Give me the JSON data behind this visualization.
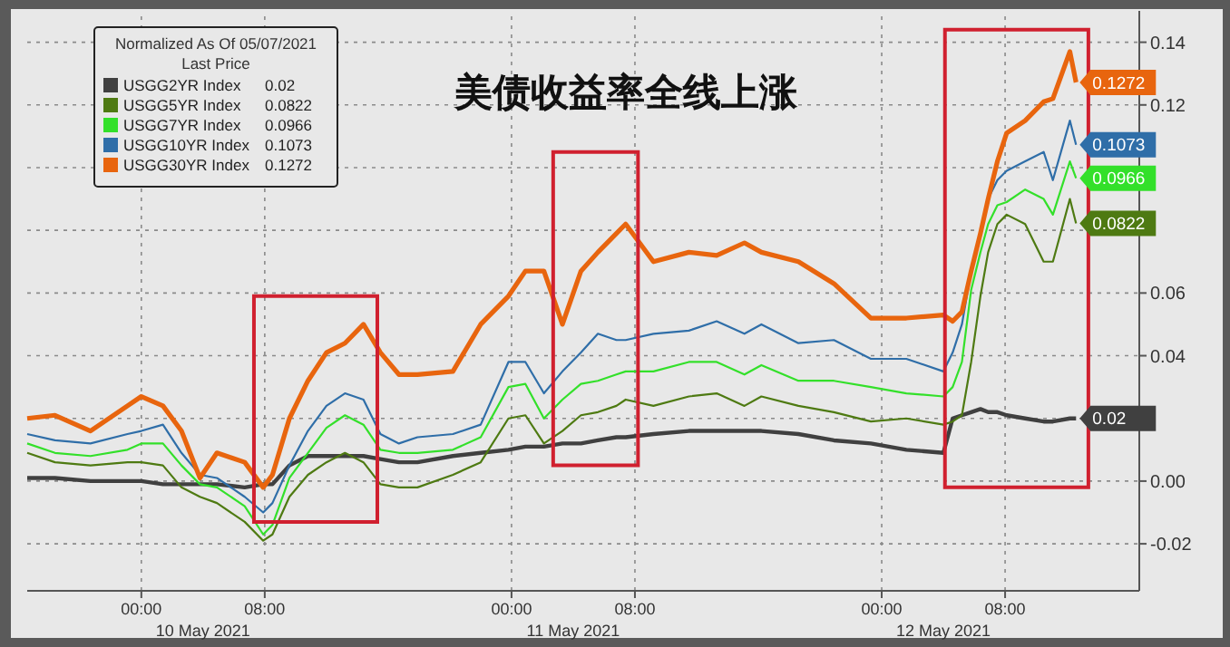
{
  "chart_data": {
    "type": "line",
    "title": "美债收益率全线上涨",
    "legend_title": "Normalized As Of 05/07/2021\nLast Price",
    "x": [
      "2021-05-09T16:36",
      "2021-05-09T18:24",
      "2021-05-09T20:42",
      "2021-05-09T23:06",
      "2021-05-10T00:00",
      "2021-05-10T01:24",
      "2021-05-10T02:36",
      "2021-05-10T03:48",
      "2021-05-10T04:54",
      "2021-05-10T06:42",
      "2021-05-10T07:54",
      "2021-05-10T08:30",
      "2021-05-10T09:36",
      "2021-05-10T10:48",
      "2021-05-10T12:00",
      "2021-05-10T13:12",
      "2021-05-10T14:24",
      "2021-05-10T15:30",
      "2021-05-10T16:42",
      "2021-05-10T17:54",
      "2021-05-10T20:12",
      "2021-05-10T22:00",
      "2021-05-10T23:48",
      "2021-05-11T00:54",
      "2021-05-11T02:06",
      "2021-05-11T03:18",
      "2021-05-11T04:30",
      "2021-05-11T05:36",
      "2021-05-11T06:48",
      "2021-05-11T07:24",
      "2021-05-11T09:12",
      "2021-05-11T11:30",
      "2021-05-11T13:18",
      "2021-05-11T15:06",
      "2021-05-11T16:12",
      "2021-05-11T18:36",
      "2021-05-11T20:54",
      "2021-05-11T23:18",
      "2021-05-12T01:36",
      "2021-05-12T04:00",
      "2021-05-12T04:36",
      "2021-05-12T05:12",
      "2021-05-12T05:48",
      "2021-05-12T06:24",
      "2021-05-12T06:54",
      "2021-05-12T07:30",
      "2021-05-12T08:06",
      "2021-05-12T09:18",
      "2021-05-12T10:30",
      "2021-05-12T11:06",
      "2021-05-12T12:12",
      "2021-05-12T12:36"
    ],
    "series": [
      {
        "name": "USGG2YR Index 0.02",
        "color": "#404040",
        "values": [
          0.001,
          0.001,
          0,
          0,
          0,
          -0.001,
          -0.001,
          -0.001,
          -0.001,
          -0.002,
          -0.001,
          -0.001,
          0.005,
          0.008,
          0.008,
          0.008,
          0.008,
          0.007,
          0.006,
          0.006,
          0.008,
          0.009,
          0.01,
          0.011,
          0.011,
          0.012,
          0.012,
          0.013,
          0.014,
          0.014,
          0.015,
          0.016,
          0.016,
          0.016,
          0.016,
          0.015,
          0.013,
          0.012,
          0.01,
          0.009,
          0.02,
          0.021,
          0.022,
          0.023,
          0.022,
          0.022,
          0.021,
          0.02,
          0.019,
          0.019,
          0.02,
          0.02
        ],
        "value_labels": [
          null,
          null,
          null,
          null,
          null,
          null,
          null,
          null,
          null,
          null,
          null,
          null,
          null,
          null,
          null,
          null,
          null,
          null,
          null,
          null,
          null,
          null,
          null,
          null,
          null,
          null,
          null,
          null,
          null,
          null,
          null,
          null,
          null,
          null,
          null,
          null,
          null,
          null,
          null,
          null,
          null,
          null,
          null,
          null,
          null,
          null,
          null,
          null,
          null,
          null,
          null,
          "0.02"
        ]
      },
      {
        "name": "USGG5YR Index 0.0822",
        "color": "#4e7a12",
        "values": [
          0.009,
          0.006,
          0.005,
          0.006,
          0.006,
          0.005,
          -0.002,
          -0.005,
          -0.007,
          -0.013,
          -0.019,
          -0.017,
          -0.005,
          0.002,
          0.006,
          0.009,
          0.006,
          -0.001,
          -0.002,
          -0.002,
          0.002,
          0.006,
          0.02,
          0.021,
          0.012,
          0.016,
          0.021,
          0.022,
          0.024,
          0.026,
          0.024,
          0.027,
          0.028,
          0.024,
          0.027,
          0.024,
          0.022,
          0.019,
          0.02,
          0.018,
          0.019,
          0.021,
          0.038,
          0.059,
          0.073,
          0.082,
          0.085,
          0.082,
          0.07,
          0.07,
          0.09,
          0.0822
        ],
        "value_labels": [
          null,
          null,
          null,
          null,
          null,
          null,
          null,
          null,
          null,
          null,
          null,
          null,
          null,
          null,
          null,
          null,
          null,
          null,
          null,
          null,
          null,
          null,
          null,
          null,
          null,
          null,
          null,
          null,
          null,
          null,
          null,
          null,
          null,
          null,
          null,
          null,
          null,
          null,
          null,
          null,
          null,
          null,
          null,
          null,
          null,
          null,
          null,
          null,
          null,
          null,
          null,
          "0.0822"
        ]
      },
      {
        "name": "USGG7YR Index 0.0966",
        "color": "#33e02a",
        "values": [
          0.012,
          0.009,
          0.008,
          0.01,
          0.012,
          0.012,
          0.005,
          -0.001,
          -0.002,
          -0.008,
          -0.017,
          -0.014,
          0.001,
          0.009,
          0.017,
          0.021,
          0.018,
          0.01,
          0.009,
          0.009,
          0.01,
          0.014,
          0.03,
          0.031,
          0.02,
          0.026,
          0.031,
          0.032,
          0.034,
          0.035,
          0.035,
          0.038,
          0.038,
          0.034,
          0.037,
          0.032,
          0.032,
          0.03,
          0.028,
          0.027,
          0.03,
          0.038,
          0.061,
          0.073,
          0.082,
          0.088,
          0.089,
          0.093,
          0.09,
          0.085,
          0.102,
          0.0966
        ],
        "value_labels": [
          null,
          null,
          null,
          null,
          null,
          null,
          null,
          null,
          null,
          null,
          null,
          null,
          null,
          null,
          null,
          null,
          null,
          null,
          null,
          null,
          null,
          null,
          null,
          null,
          null,
          null,
          null,
          null,
          null,
          null,
          null,
          null,
          null,
          null,
          null,
          null,
          null,
          null,
          null,
          null,
          null,
          null,
          null,
          null,
          null,
          null,
          null,
          null,
          null,
          null,
          null,
          "0.0966"
        ]
      },
      {
        "name": "USGG10YR Index 0.1073",
        "color": "#2f6ea8",
        "values": [
          0.015,
          0.013,
          0.012,
          0.015,
          0.016,
          0.018,
          0.009,
          0.002,
          0.001,
          -0.005,
          -0.01,
          -0.007,
          0.005,
          0.016,
          0.024,
          0.028,
          0.026,
          0.015,
          0.012,
          0.014,
          0.015,
          0.018,
          0.038,
          0.038,
          0.028,
          0.035,
          0.041,
          0.047,
          0.045,
          0.045,
          0.047,
          0.048,
          0.051,
          0.047,
          0.05,
          0.044,
          0.045,
          0.039,
          0.039,
          0.035,
          0.041,
          0.05,
          0.067,
          0.079,
          0.09,
          0.096,
          0.099,
          0.102,
          0.105,
          0.096,
          0.115,
          0.1073
        ],
        "value_labels": [
          null,
          null,
          null,
          null,
          null,
          null,
          null,
          null,
          null,
          null,
          null,
          null,
          null,
          null,
          null,
          null,
          null,
          null,
          null,
          null,
          null,
          null,
          null,
          null,
          null,
          null,
          null,
          null,
          null,
          null,
          null,
          null,
          null,
          null,
          null,
          null,
          null,
          null,
          null,
          null,
          null,
          null,
          null,
          null,
          null,
          null,
          null,
          null,
          null,
          null,
          null,
          "0.1073"
        ]
      },
      {
        "name": "USGG30YR Index 0.1272",
        "color": "#e8650e",
        "values": [
          0.02,
          0.021,
          0.016,
          0.024,
          0.027,
          0.024,
          0.016,
          0.001,
          0.009,
          0.006,
          -0.002,
          0.002,
          0.02,
          0.032,
          0.041,
          0.044,
          0.05,
          0.041,
          0.034,
          0.034,
          0.035,
          0.05,
          0.059,
          0.067,
          0.067,
          0.05,
          0.067,
          0.073,
          0.079,
          0.082,
          0.07,
          0.073,
          0.072,
          0.076,
          0.073,
          0.07,
          0.063,
          0.052,
          0.052,
          0.053,
          0.051,
          0.054,
          0.067,
          0.079,
          0.09,
          0.102,
          0.111,
          0.115,
          0.121,
          0.122,
          0.137,
          0.1272
        ],
        "value_labels": [
          null,
          null,
          null,
          null,
          null,
          null,
          null,
          null,
          null,
          null,
          null,
          null,
          null,
          null,
          null,
          null,
          null,
          null,
          null,
          null,
          null,
          null,
          null,
          null,
          null,
          null,
          null,
          null,
          null,
          null,
          null,
          null,
          null,
          null,
          null,
          null,
          null,
          null,
          null,
          null,
          null,
          null,
          null,
          null,
          null,
          null,
          null,
          null,
          null,
          null,
          null,
          "0.1272"
        ]
      }
    ],
    "xlim": [
      "2021-05-09T16:36",
      "2021-05-12T16:42"
    ],
    "xticks": [
      {
        "value": "2021-05-10T00:00",
        "label": "00:00"
      },
      {
        "value": "2021-05-10T08:00",
        "label": "08:00"
      },
      {
        "value": "2021-05-11T00:00",
        "label": "00:00"
      },
      {
        "value": "2021-05-11T08:00",
        "label": "08:00"
      },
      {
        "value": "2021-05-12T00:00",
        "label": "00:00"
      },
      {
        "value": "2021-05-12T08:00",
        "label": "08:00"
      }
    ],
    "ylim": [
      -0.035,
      0.15
    ],
    "yticks": [
      -0.02,
      {
        "value": 0,
        "label": "0.00"
      },
      {
        "value": 0.02,
        "label": null
      },
      0.04,
      0.06,
      {
        "value": 0.08,
        "label": null
      },
      {
        "value": 0.1,
        "label": null
      },
      0.12,
      0.14
    ],
    "annotations": [
      "10 May 2021",
      "11 May 2021",
      "12 May 2021"
    ],
    "grid": true,
    "legend": "top left",
    "line_style": "solid",
    "marker": "none"
  }
}
